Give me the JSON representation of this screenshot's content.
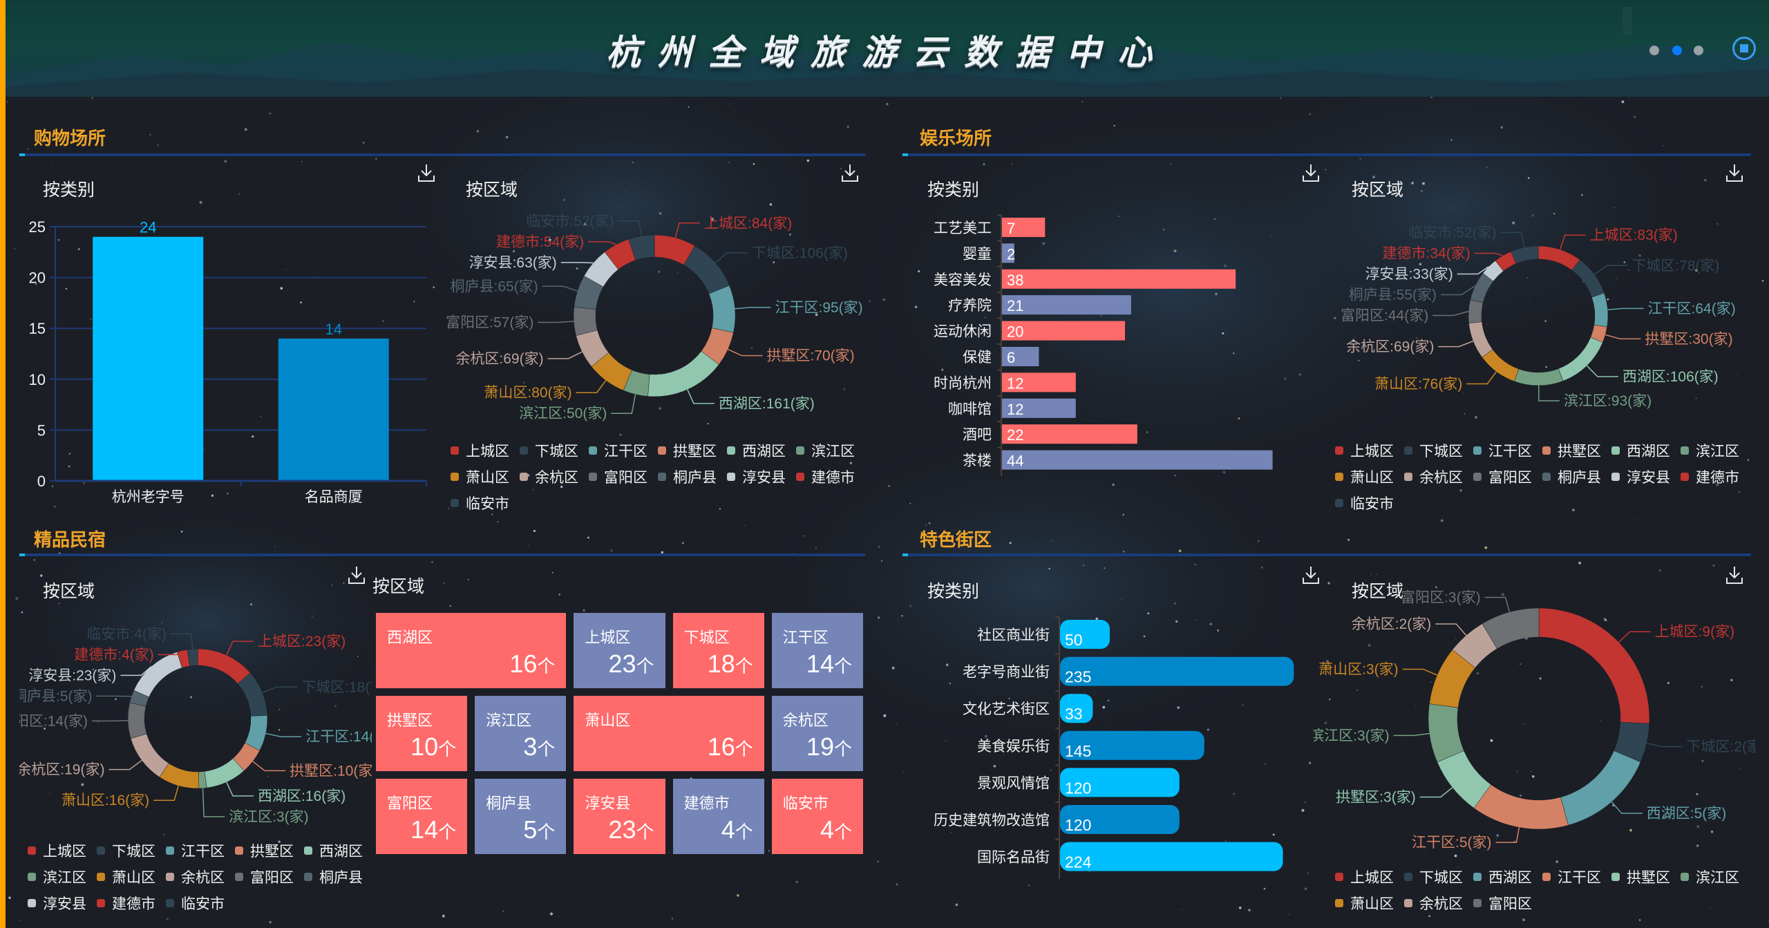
{
  "header": {
    "title": "杭州全域旅游云数据中心",
    "page_dots": [
      {
        "active": false
      },
      {
        "active": true
      },
      {
        "active": false
      }
    ],
    "play_button_icon": "stop-icon"
  },
  "sections": {
    "shopping": {
      "title": "购物场所",
      "by_category": "按类别",
      "by_region": "按区域"
    },
    "entertainment": {
      "title": "娱乐场所",
      "by_category": "按类别",
      "by_region": "按区域"
    },
    "homestay": {
      "title": "精品民宿",
      "by_region_pie": "按区域",
      "by_region_treemap": "按区域"
    },
    "street": {
      "title": "特色街区",
      "by_category": "按类别",
      "by_region": "按区域"
    }
  },
  "icons": {
    "download": "download-icon"
  },
  "colors": {
    "accent_orange": "#f0a428",
    "divider_blue": "#173c7a",
    "palette": [
      "#c23531",
      "#2f4554",
      "#61a0a8",
      "#d48265",
      "#91c7ae",
      "#749f83",
      "#ca8622",
      "#bda29a",
      "#6e7074",
      "#546570",
      "#c4ccd3"
    ]
  },
  "chart_data": [
    {
      "id": "shopping-category",
      "type": "bar",
      "categories": [
        "杭州老字号",
        "名品商厦"
      ],
      "values": [
        24,
        14
      ],
      "colors": [
        "#00bfff",
        "#0088cc"
      ],
      "ylim": [
        0,
        25
      ],
      "yticks": [
        "0",
        "5",
        "10",
        "15",
        "20",
        "25"
      ],
      "grid": true
    },
    {
      "id": "shopping-region",
      "type": "pie",
      "donut": true,
      "unit": "家",
      "series": [
        {
          "name": "上城区",
          "value": 84,
          "color": "#c23531"
        },
        {
          "name": "下城区",
          "value": 106,
          "color": "#2f4554"
        },
        {
          "name": "江干区",
          "value": 95,
          "color": "#61a0a8"
        },
        {
          "name": "拱墅区",
          "value": 70,
          "color": "#d48265"
        },
        {
          "name": "西湖区",
          "value": 161,
          "color": "#91c7ae"
        },
        {
          "name": "滨江区",
          "value": 50,
          "color": "#749f83"
        },
        {
          "name": "萧山区",
          "value": 80,
          "color": "#ca8622"
        },
        {
          "name": "余杭区",
          "value": 69,
          "color": "#bda29a"
        },
        {
          "name": "富阳区",
          "value": 57,
          "color": "#6e7074"
        },
        {
          "name": "桐庐县",
          "value": 65,
          "color": "#546570"
        },
        {
          "name": "淳安县",
          "value": 63,
          "color": "#c4ccd3"
        },
        {
          "name": "建德市",
          "value": 54,
          "color": "#c23531"
        },
        {
          "name": "临安市",
          "value": 52,
          "color": "#2f4554"
        }
      ],
      "legend": "bottom"
    },
    {
      "id": "entertainment-category",
      "type": "bar",
      "orientation": "horizontal",
      "categories": [
        "工艺美工",
        "婴童",
        "美容美发",
        "疗养院",
        "运动休闲",
        "保健",
        "时尚杭州",
        "咖啡馆",
        "酒吧",
        "茶楼"
      ],
      "values": [
        7,
        2,
        38,
        21,
        20,
        6,
        12,
        12,
        22,
        44
      ],
      "colors": [
        "#ff6b6b",
        "#7585b8"
      ]
    },
    {
      "id": "entertainment-region",
      "type": "pie",
      "donut": true,
      "unit": "家",
      "series": [
        {
          "name": "上城区",
          "value": 83,
          "color": "#c23531"
        },
        {
          "name": "下城区",
          "value": 78,
          "color": "#2f4554"
        },
        {
          "name": "江干区",
          "value": 64,
          "color": "#61a0a8"
        },
        {
          "name": "拱墅区",
          "value": 30,
          "color": "#d48265"
        },
        {
          "name": "西湖区",
          "value": 106,
          "color": "#91c7ae"
        },
        {
          "name": "滨江区",
          "value": 93,
          "color": "#749f83"
        },
        {
          "name": "萧山区",
          "value": 76,
          "color": "#ca8622"
        },
        {
          "name": "余杭区",
          "value": 69,
          "color": "#bda29a"
        },
        {
          "name": "富阳区",
          "value": 44,
          "color": "#6e7074"
        },
        {
          "name": "桐庐县",
          "value": 55,
          "color": "#546570"
        },
        {
          "name": "淳安县",
          "value": 33,
          "color": "#c4ccd3"
        },
        {
          "name": "建德市",
          "value": 34,
          "color": "#c23531"
        },
        {
          "name": "临安市",
          "value": 52,
          "color": "#2f4554"
        }
      ],
      "legend": "bottom"
    },
    {
      "id": "homestay-region-pie",
      "type": "pie",
      "donut": true,
      "unit": "家",
      "series": [
        {
          "name": "上城区",
          "value": 23,
          "color": "#c23531"
        },
        {
          "name": "下城区",
          "value": 18,
          "color": "#2f4554"
        },
        {
          "name": "江干区",
          "value": 14,
          "color": "#61a0a8"
        },
        {
          "name": "拱墅区",
          "value": 10,
          "color": "#d48265"
        },
        {
          "name": "西湖区",
          "value": 16,
          "color": "#91c7ae"
        },
        {
          "name": "滨江区",
          "value": 3,
          "color": "#749f83"
        },
        {
          "name": "萧山区",
          "value": 16,
          "color": "#ca8622"
        },
        {
          "name": "余杭区",
          "value": 19,
          "color": "#bda29a"
        },
        {
          "name": "富阳区",
          "value": 14,
          "color": "#6e7074"
        },
        {
          "name": "桐庐县",
          "value": 5,
          "color": "#546570"
        },
        {
          "name": "淳安县",
          "value": 23,
          "color": "#c4ccd3"
        },
        {
          "name": "建德市",
          "value": 4,
          "color": "#c23531"
        },
        {
          "name": "临安市",
          "value": 4,
          "color": "#2f4554"
        }
      ],
      "legend": "bottom"
    },
    {
      "id": "homestay-region-treemap",
      "type": "treemap",
      "unit": "个",
      "series": [
        {
          "name": "西湖区",
          "value": 16,
          "color": "#ff6b6b"
        },
        {
          "name": "上城区",
          "value": 23,
          "color": "#7585b8"
        },
        {
          "name": "下城区",
          "value": 18,
          "color": "#ff6b6b"
        },
        {
          "name": "江干区",
          "value": 14,
          "color": "#7585b8"
        },
        {
          "name": "拱墅区",
          "value": 10,
          "color": "#ff6b6b"
        },
        {
          "name": "滨江区",
          "value": 3,
          "color": "#7585b8"
        },
        {
          "name": "萧山区",
          "value": 16,
          "color": "#ff6b6b"
        },
        {
          "name": "余杭区",
          "value": 19,
          "color": "#7585b8"
        },
        {
          "name": "富阳区",
          "value": 14,
          "color": "#ff6b6b"
        },
        {
          "name": "桐庐县",
          "value": 5,
          "color": "#7585b8"
        },
        {
          "name": "淳安县",
          "value": 23,
          "color": "#ff6b6b"
        },
        {
          "name": "建德市",
          "value": 4,
          "color": "#7585b8"
        },
        {
          "name": "临安市",
          "value": 4,
          "color": "#ff6b6b"
        }
      ]
    },
    {
      "id": "street-category",
      "type": "bar",
      "orientation": "horizontal",
      "categories": [
        "社区商业街",
        "老字号商业街",
        "文化艺术街区",
        "美食娱乐街",
        "景观风情馆",
        "历史建筑物改造馆",
        "国际名品街"
      ],
      "values": [
        50,
        235,
        33,
        145,
        120,
        120,
        224
      ],
      "colors": [
        "#00bfff",
        "#0088cc"
      ]
    },
    {
      "id": "street-region",
      "type": "pie",
      "donut": true,
      "unit": "家",
      "series": [
        {
          "name": "上城区",
          "value": 9,
          "color": "#c23531"
        },
        {
          "name": "下城区",
          "value": 2,
          "color": "#2f4554"
        },
        {
          "name": "西湖区",
          "value": 5,
          "color": "#61a0a8"
        },
        {
          "name": "江干区",
          "value": 5,
          "color": "#d48265"
        },
        {
          "name": "拱墅区",
          "value": 3,
          "color": "#91c7ae"
        },
        {
          "name": "滨江区",
          "value": 3,
          "color": "#749f83"
        },
        {
          "name": "萧山区",
          "value": 3,
          "color": "#ca8622"
        },
        {
          "name": "余杭区",
          "value": 2,
          "color": "#bda29a"
        },
        {
          "name": "富阳区",
          "value": 3,
          "color": "#6e7074"
        }
      ],
      "legend": "bottom"
    }
  ]
}
